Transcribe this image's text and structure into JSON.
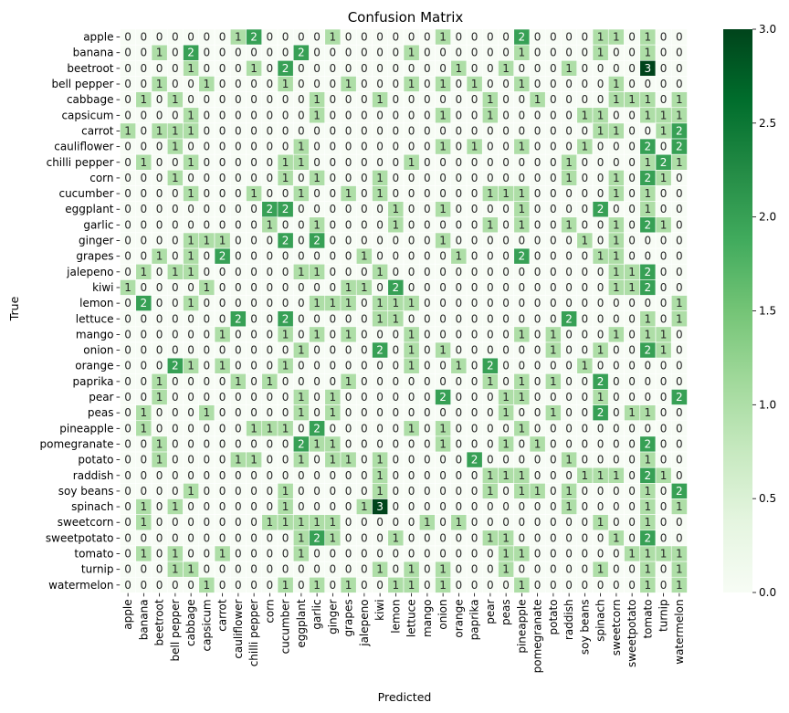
{
  "chart_data": {
    "type": "heatmap",
    "title": "Confusion Matrix",
    "xlabel": "Predicted",
    "ylabel": "True",
    "labels": [
      "apple",
      "banana",
      "beetroot",
      "bell pepper",
      "cabbage",
      "capsicum",
      "carrot",
      "cauliflower",
      "chilli pepper",
      "corn",
      "cucumber",
      "eggplant",
      "garlic",
      "ginger",
      "grapes",
      "jalepeno",
      "kiwi",
      "lemon",
      "lettuce",
      "mango",
      "onion",
      "orange",
      "paprika",
      "pear",
      "peas",
      "pineapple",
      "pomegranate",
      "potato",
      "raddish",
      "soy beans",
      "spinach",
      "sweetcorn",
      "sweetpotato",
      "tomato",
      "turnip",
      "watermelon"
    ],
    "matrix": [
      [
        0,
        0,
        0,
        0,
        0,
        0,
        0,
        1,
        2,
        0,
        0,
        0,
        0,
        1,
        0,
        0,
        0,
        0,
        0,
        0,
        1,
        0,
        0,
        0,
        0,
        2,
        0,
        0,
        0,
        0,
        1,
        1,
        0,
        1,
        0,
        0
      ],
      [
        0,
        0,
        1,
        0,
        2,
        0,
        0,
        0,
        0,
        0,
        0,
        2,
        0,
        0,
        0,
        0,
        0,
        0,
        1,
        0,
        0,
        0,
        0,
        0,
        0,
        1,
        0,
        0,
        0,
        0,
        1,
        0,
        0,
        1,
        0,
        0
      ],
      [
        0,
        0,
        0,
        0,
        1,
        0,
        0,
        0,
        1,
        0,
        2,
        0,
        0,
        0,
        0,
        0,
        0,
        0,
        0,
        0,
        0,
        1,
        0,
        0,
        1,
        0,
        0,
        0,
        1,
        0,
        0,
        0,
        0,
        3,
        0,
        0
      ],
      [
        0,
        0,
        1,
        0,
        0,
        1,
        0,
        0,
        0,
        0,
        1,
        0,
        0,
        0,
        1,
        0,
        0,
        0,
        1,
        0,
        1,
        0,
        1,
        0,
        0,
        1,
        0,
        0,
        0,
        0,
        0,
        1,
        0,
        0,
        0,
        0
      ],
      [
        0,
        1,
        0,
        1,
        0,
        0,
        0,
        0,
        0,
        0,
        0,
        0,
        1,
        0,
        0,
        0,
        1,
        0,
        0,
        0,
        0,
        0,
        0,
        1,
        0,
        0,
        1,
        0,
        0,
        0,
        0,
        1,
        1,
        1,
        0,
        1
      ],
      [
        0,
        0,
        0,
        0,
        1,
        0,
        0,
        0,
        0,
        0,
        0,
        0,
        1,
        0,
        0,
        0,
        0,
        0,
        0,
        0,
        1,
        0,
        0,
        1,
        0,
        0,
        0,
        0,
        0,
        1,
        1,
        0,
        0,
        1,
        1,
        1
      ],
      [
        1,
        0,
        1,
        1,
        1,
        0,
        0,
        0,
        0,
        0,
        0,
        0,
        0,
        0,
        0,
        0,
        0,
        0,
        0,
        0,
        0,
        0,
        0,
        0,
        0,
        0,
        0,
        0,
        0,
        0,
        1,
        1,
        0,
        0,
        1,
        2
      ],
      [
        0,
        0,
        0,
        1,
        0,
        0,
        0,
        0,
        0,
        0,
        0,
        1,
        0,
        0,
        0,
        0,
        0,
        0,
        0,
        0,
        1,
        0,
        1,
        0,
        0,
        1,
        0,
        0,
        0,
        1,
        0,
        0,
        0,
        2,
        0,
        2
      ],
      [
        0,
        1,
        0,
        0,
        1,
        0,
        0,
        0,
        0,
        0,
        1,
        1,
        0,
        0,
        0,
        0,
        0,
        0,
        1,
        0,
        0,
        0,
        0,
        0,
        0,
        0,
        0,
        0,
        1,
        0,
        0,
        0,
        0,
        1,
        2,
        1
      ],
      [
        0,
        0,
        0,
        1,
        0,
        0,
        0,
        0,
        0,
        0,
        1,
        0,
        1,
        0,
        0,
        0,
        1,
        0,
        0,
        0,
        0,
        0,
        0,
        0,
        0,
        0,
        0,
        0,
        1,
        0,
        0,
        1,
        0,
        2,
        1,
        0
      ],
      [
        0,
        0,
        0,
        0,
        1,
        0,
        0,
        0,
        1,
        0,
        0,
        1,
        0,
        0,
        1,
        0,
        1,
        0,
        0,
        0,
        0,
        0,
        0,
        1,
        1,
        1,
        0,
        0,
        0,
        0,
        0,
        1,
        0,
        1,
        0,
        0
      ],
      [
        0,
        0,
        0,
        0,
        0,
        0,
        0,
        0,
        0,
        2,
        2,
        0,
        0,
        0,
        0,
        0,
        0,
        1,
        0,
        0,
        1,
        0,
        0,
        0,
        0,
        1,
        0,
        0,
        0,
        0,
        2,
        0,
        0,
        1,
        0,
        0
      ],
      [
        0,
        0,
        0,
        0,
        0,
        0,
        0,
        0,
        0,
        1,
        0,
        0,
        1,
        0,
        0,
        0,
        0,
        1,
        0,
        0,
        0,
        0,
        0,
        1,
        0,
        1,
        0,
        0,
        1,
        0,
        0,
        1,
        0,
        2,
        1,
        0
      ],
      [
        0,
        0,
        0,
        0,
        1,
        1,
        1,
        0,
        0,
        0,
        2,
        0,
        2,
        0,
        0,
        0,
        0,
        0,
        0,
        0,
        1,
        0,
        0,
        0,
        0,
        0,
        0,
        0,
        0,
        1,
        0,
        1,
        0,
        0,
        0,
        0
      ],
      [
        0,
        0,
        1,
        0,
        1,
        0,
        2,
        0,
        0,
        0,
        0,
        0,
        0,
        0,
        0,
        1,
        0,
        0,
        0,
        0,
        0,
        1,
        0,
        0,
        0,
        2,
        0,
        0,
        0,
        0,
        1,
        1,
        0,
        0,
        0,
        0
      ],
      [
        0,
        1,
        0,
        1,
        1,
        0,
        0,
        0,
        0,
        0,
        0,
        1,
        1,
        0,
        0,
        0,
        1,
        0,
        0,
        0,
        0,
        0,
        0,
        0,
        0,
        0,
        0,
        0,
        0,
        0,
        0,
        1,
        1,
        2,
        0,
        0
      ],
      [
        1,
        0,
        0,
        0,
        0,
        1,
        0,
        0,
        0,
        0,
        0,
        0,
        0,
        0,
        1,
        1,
        0,
        2,
        0,
        0,
        0,
        0,
        0,
        0,
        0,
        0,
        0,
        0,
        0,
        0,
        0,
        1,
        1,
        2,
        0,
        0
      ],
      [
        0,
        2,
        0,
        0,
        1,
        0,
        0,
        0,
        0,
        0,
        0,
        0,
        1,
        1,
        1,
        0,
        1,
        1,
        1,
        0,
        0,
        0,
        0,
        0,
        0,
        0,
        0,
        0,
        0,
        0,
        0,
        0,
        0,
        0,
        0,
        1
      ],
      [
        0,
        0,
        0,
        0,
        0,
        0,
        0,
        2,
        0,
        0,
        2,
        0,
        0,
        0,
        0,
        0,
        1,
        1,
        0,
        0,
        0,
        0,
        0,
        0,
        0,
        0,
        0,
        0,
        2,
        0,
        0,
        0,
        0,
        1,
        0,
        1
      ],
      [
        0,
        0,
        0,
        0,
        0,
        0,
        1,
        0,
        0,
        0,
        1,
        0,
        1,
        0,
        1,
        0,
        0,
        0,
        1,
        0,
        0,
        0,
        0,
        0,
        0,
        1,
        0,
        1,
        0,
        0,
        0,
        1,
        0,
        1,
        1,
        0
      ],
      [
        0,
        0,
        0,
        0,
        0,
        0,
        0,
        0,
        0,
        0,
        0,
        1,
        0,
        0,
        0,
        0,
        2,
        0,
        1,
        0,
        1,
        0,
        0,
        0,
        0,
        0,
        0,
        1,
        0,
        0,
        1,
        0,
        0,
        2,
        1,
        0
      ],
      [
        0,
        0,
        0,
        2,
        1,
        0,
        1,
        0,
        0,
        0,
        1,
        0,
        0,
        0,
        0,
        0,
        0,
        0,
        1,
        0,
        0,
        1,
        0,
        2,
        0,
        0,
        0,
        0,
        0,
        1,
        0,
        0,
        0,
        0,
        0,
        0
      ],
      [
        0,
        0,
        1,
        0,
        0,
        0,
        0,
        1,
        0,
        1,
        0,
        0,
        0,
        0,
        1,
        0,
        0,
        0,
        0,
        0,
        0,
        0,
        0,
        1,
        0,
        1,
        0,
        1,
        0,
        0,
        2,
        0,
        0,
        0,
        0,
        0
      ],
      [
        0,
        0,
        1,
        0,
        0,
        0,
        0,
        0,
        0,
        0,
        0,
        1,
        0,
        1,
        0,
        0,
        0,
        0,
        0,
        0,
        2,
        0,
        0,
        0,
        1,
        1,
        0,
        0,
        0,
        0,
        1,
        0,
        0,
        0,
        0,
        2
      ],
      [
        0,
        1,
        0,
        0,
        0,
        1,
        0,
        0,
        0,
        0,
        0,
        1,
        0,
        1,
        0,
        0,
        0,
        0,
        0,
        0,
        0,
        0,
        0,
        0,
        1,
        0,
        0,
        1,
        0,
        0,
        2,
        0,
        1,
        1,
        0,
        0
      ],
      [
        0,
        1,
        0,
        0,
        0,
        0,
        0,
        0,
        1,
        1,
        1,
        0,
        2,
        0,
        0,
        0,
        0,
        0,
        1,
        0,
        1,
        0,
        0,
        0,
        0,
        1,
        0,
        0,
        0,
        0,
        0,
        0,
        0,
        0,
        0,
        0
      ],
      [
        0,
        0,
        1,
        0,
        0,
        0,
        0,
        0,
        0,
        0,
        0,
        2,
        1,
        1,
        0,
        0,
        0,
        0,
        0,
        0,
        1,
        0,
        0,
        0,
        1,
        0,
        1,
        0,
        0,
        0,
        0,
        0,
        0,
        2,
        0,
        0
      ],
      [
        0,
        0,
        1,
        0,
        0,
        0,
        0,
        1,
        1,
        0,
        0,
        1,
        0,
        1,
        1,
        0,
        1,
        0,
        0,
        0,
        0,
        0,
        2,
        0,
        0,
        0,
        0,
        0,
        1,
        0,
        0,
        0,
        0,
        1,
        0,
        0
      ],
      [
        0,
        0,
        0,
        0,
        0,
        0,
        0,
        0,
        0,
        0,
        0,
        0,
        0,
        0,
        0,
        0,
        1,
        0,
        0,
        0,
        0,
        0,
        0,
        1,
        1,
        1,
        0,
        0,
        0,
        1,
        1,
        1,
        0,
        2,
        1,
        0
      ],
      [
        0,
        0,
        0,
        0,
        1,
        0,
        0,
        0,
        0,
        0,
        1,
        0,
        0,
        0,
        0,
        0,
        1,
        0,
        0,
        0,
        0,
        0,
        0,
        1,
        0,
        1,
        1,
        0,
        1,
        0,
        0,
        0,
        0,
        1,
        0,
        2
      ],
      [
        0,
        1,
        0,
        1,
        0,
        0,
        0,
        0,
        0,
        0,
        1,
        0,
        0,
        0,
        0,
        1,
        3,
        0,
        0,
        0,
        0,
        0,
        0,
        0,
        0,
        0,
        0,
        0,
        1,
        0,
        0,
        0,
        0,
        1,
        0,
        1
      ],
      [
        0,
        1,
        0,
        0,
        0,
        0,
        0,
        0,
        0,
        1,
        1,
        1,
        1,
        1,
        0,
        0,
        0,
        0,
        0,
        1,
        0,
        1,
        0,
        0,
        0,
        0,
        0,
        0,
        0,
        0,
        1,
        0,
        0,
        1,
        0,
        0
      ],
      [
        0,
        0,
        0,
        0,
        0,
        0,
        0,
        0,
        0,
        0,
        0,
        1,
        2,
        1,
        0,
        0,
        0,
        1,
        0,
        0,
        0,
        0,
        0,
        1,
        1,
        0,
        0,
        0,
        0,
        0,
        0,
        1,
        0,
        2,
        0,
        0
      ],
      [
        0,
        1,
        0,
        1,
        0,
        0,
        1,
        0,
        0,
        0,
        0,
        1,
        0,
        0,
        0,
        0,
        0,
        0,
        0,
        0,
        0,
        0,
        0,
        0,
        1,
        1,
        0,
        0,
        0,
        0,
        0,
        0,
        1,
        1,
        1,
        1
      ],
      [
        0,
        0,
        0,
        1,
        1,
        0,
        0,
        0,
        0,
        0,
        0,
        0,
        0,
        0,
        0,
        0,
        1,
        0,
        1,
        0,
        1,
        0,
        0,
        0,
        1,
        0,
        0,
        0,
        0,
        0,
        1,
        0,
        0,
        1,
        0,
        1
      ],
      [
        0,
        0,
        0,
        0,
        0,
        1,
        0,
        0,
        0,
        0,
        1,
        0,
        1,
        0,
        1,
        0,
        0,
        1,
        1,
        0,
        1,
        0,
        0,
        0,
        0,
        1,
        0,
        0,
        0,
        0,
        0,
        0,
        0,
        1,
        0,
        1
      ]
    ],
    "vmin": 0,
    "vmax": 3,
    "colorbar_ticks": [
      "0.0",
      "0.5",
      "1.0",
      "1.5",
      "2.0",
      "2.5",
      "3.0"
    ],
    "colormap": "Greens",
    "cell_border_color": "#ffffff"
  }
}
